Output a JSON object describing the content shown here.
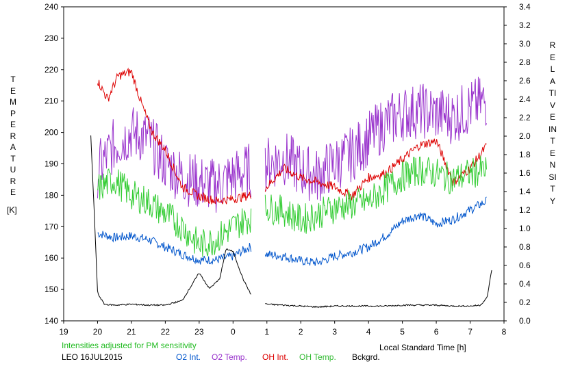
{
  "chart_data": {
    "type": "line",
    "left_axis": {
      "label": "TEMPERATURE",
      "unit": "[K]",
      "range": [
        140,
        240
      ],
      "ticks": [
        140,
        150,
        160,
        170,
        180,
        190,
        200,
        210,
        220,
        230,
        240
      ]
    },
    "right_axis": {
      "label": "RELATIVE INTENSITY",
      "range": [
        0.0,
        3.4
      ],
      "ticks": [
        "0.0",
        "0.2",
        "0.4",
        "0.6",
        "0.8",
        "1.0",
        "1.2",
        "1.4",
        "1.6",
        "1.8",
        "2.0",
        "2.2",
        "2.4",
        "2.6",
        "2.8",
        "3.0",
        "3.2",
        "3.4"
      ]
    },
    "x_axis": {
      "label": "Local Standard Time [h]",
      "range": [
        19,
        32
      ],
      "tick_labels": [
        "19",
        "20",
        "21",
        "22",
        "23",
        "0",
        "1",
        "2",
        "3",
        "4",
        "5",
        "6",
        "7",
        "8"
      ]
    },
    "note": "Intensities adjusted for PM sensitivity",
    "station": "LEO 16JUL2015",
    "grid": false,
    "gap_hours": [
      24.55,
      24.95
    ],
    "series": [
      {
        "name": "O2 Int.",
        "color": "#0055cc",
        "axis": "right",
        "x": [
          20.0,
          20.5,
          21.0,
          21.5,
          22.0,
          22.5,
          23.0,
          23.5,
          24.0,
          24.5,
          25.0,
          25.5,
          26.0,
          26.5,
          27.0,
          27.5,
          28.0,
          28.5,
          29.0,
          29.5,
          30.0,
          30.5,
          31.0,
          31.5
        ],
        "y": [
          0.95,
          0.9,
          0.92,
          0.88,
          0.8,
          0.72,
          0.66,
          0.66,
          0.7,
          0.8,
          0.72,
          0.7,
          0.65,
          0.63,
          0.7,
          0.74,
          0.8,
          0.92,
          1.08,
          1.15,
          1.05,
          1.1,
          1.2,
          1.3
        ]
      },
      {
        "name": "O2 Temp.",
        "color": "#9933cc",
        "axis": "left",
        "x": [
          20.0,
          20.5,
          21.0,
          21.5,
          22.0,
          22.5,
          23.0,
          23.5,
          24.0,
          24.5,
          25.0,
          25.5,
          26.0,
          26.5,
          27.0,
          27.5,
          28.0,
          28.5,
          29.0,
          29.5,
          30.0,
          30.5,
          31.0,
          31.5
        ],
        "y": [
          188,
          196,
          200,
          198,
          190,
          186,
          184,
          183,
          186,
          188,
          190,
          192,
          188,
          186,
          190,
          193,
          198,
          203,
          206,
          207,
          206,
          205,
          208,
          210
        ]
      },
      {
        "name": "OH Int.",
        "color": "#dd0000",
        "axis": "right",
        "x": [
          20.0,
          20.3,
          20.6,
          21.0,
          21.3,
          21.6,
          22.0,
          22.5,
          23.0,
          23.5,
          24.0,
          24.5,
          25.0,
          25.5,
          26.0,
          26.5,
          27.0,
          27.5,
          28.0,
          28.5,
          29.0,
          29.5,
          30.0,
          30.5,
          31.0,
          31.5
        ],
        "y": [
          2.6,
          2.4,
          2.65,
          2.7,
          2.35,
          2.05,
          1.85,
          1.45,
          1.35,
          1.3,
          1.32,
          1.36,
          1.45,
          1.65,
          1.55,
          1.5,
          1.45,
          1.35,
          1.55,
          1.6,
          1.75,
          1.9,
          1.95,
          1.5,
          1.65,
          1.9
        ]
      },
      {
        "name": "OH Temp.",
        "color": "#33cc33",
        "axis": "left",
        "x": [
          20.0,
          20.5,
          21.0,
          21.5,
          22.0,
          22.5,
          23.0,
          23.5,
          24.0,
          24.5,
          25.0,
          25.5,
          26.0,
          26.5,
          27.0,
          27.5,
          28.0,
          28.5,
          29.0,
          29.5,
          30.0,
          30.5,
          31.0,
          31.5
        ],
        "y": [
          182,
          185,
          180,
          178,
          174,
          170,
          164,
          166,
          170,
          173,
          176,
          175,
          172,
          174,
          176,
          177,
          178,
          182,
          186,
          188,
          187,
          185,
          187,
          188
        ]
      },
      {
        "name": "Bckgrd.",
        "color": "#000000",
        "axis": "right",
        "x": [
          19.8,
          19.9,
          20.0,
          20.2,
          20.5,
          21.0,
          21.5,
          22.0,
          22.5,
          22.8,
          23.0,
          23.3,
          23.6,
          23.8,
          24.0,
          24.3,
          24.55,
          25.0,
          25.5,
          26.0,
          26.5,
          27.0,
          27.5,
          28.0,
          28.5,
          29.0,
          29.5,
          30.0,
          30.5,
          31.0,
          31.3,
          31.5,
          31.65
        ],
        "y": [
          2.0,
          1.2,
          0.3,
          0.18,
          0.17,
          0.18,
          0.17,
          0.17,
          0.22,
          0.4,
          0.52,
          0.35,
          0.45,
          0.78,
          0.75,
          0.45,
          0.27,
          0.18,
          0.17,
          0.16,
          0.15,
          0.16,
          0.16,
          0.16,
          0.16,
          0.17,
          0.17,
          0.17,
          0.16,
          0.16,
          0.17,
          0.25,
          0.58
        ]
      }
    ]
  }
}
